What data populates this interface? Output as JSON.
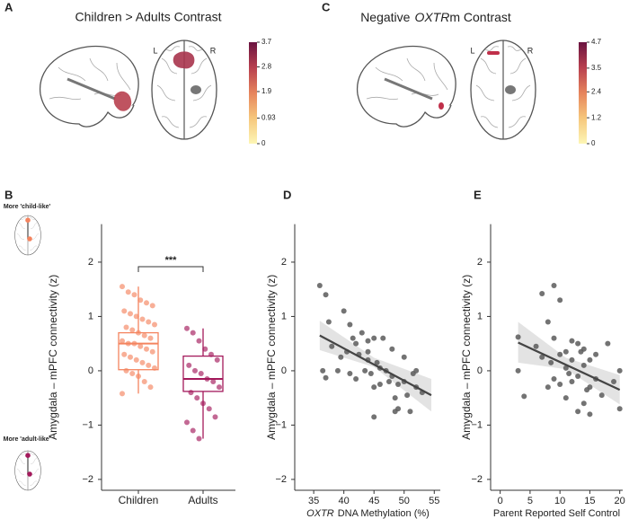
{
  "chart_data": [
    {
      "type": "brain",
      "panel": "A",
      "title": "Children > Adults Contrast",
      "left_label": "L",
      "right_label": "R",
      "colorbar": {
        "lim": [
          0,
          3.7
        ],
        "ticks": [
          0,
          0.93,
          1.9,
          2.8,
          3.7
        ],
        "colors": [
          "#fdf6b5",
          "#f6c77c",
          "#e6845c",
          "#b8404f",
          "#6a1340"
        ]
      }
    },
    {
      "type": "brain",
      "panel": "C",
      "title_prefix": "Negative",
      "title_italic": "OXTR",
      "title_suffix": "m Contrast",
      "left_label": "L",
      "right_label": "R",
      "colorbar": {
        "lim": [
          0,
          4.7
        ],
        "ticks": [
          0,
          1.2,
          2.4,
          3.5,
          4.7
        ],
        "colors": [
          "#fdf6b5",
          "#f6c77c",
          "#e6845c",
          "#b8404f",
          "#6a1340"
        ]
      }
    },
    {
      "type": "box",
      "panel": "B",
      "ylabel": "Amygdala – mPFC connectivity (z)",
      "ylim": [
        -2.2,
        2.7
      ],
      "yticks": [
        {
          "value": -2,
          "label": "−2"
        },
        {
          "value": -1,
          "label": "−1"
        },
        0,
        1,
        2
      ],
      "categories": [
        "Children",
        "Adults"
      ],
      "annotation": "***",
      "top_label": "More 'child-like'",
      "bottom_label": "More 'adult-like'",
      "series": [
        {
          "color": "#f4845f",
          "box": {
            "min": -0.42,
            "q1": 0.02,
            "median": 0.5,
            "q3": 0.7,
            "max": 1.55
          },
          "values": [
            1.55,
            1.45,
            1.4,
            1.3,
            1.25,
            1.2,
            1.1,
            1.05,
            1.0,
            0.95,
            0.9,
            0.85,
            0.8,
            0.75,
            0.7,
            0.65,
            0.6,
            0.55,
            0.5,
            0.5,
            0.45,
            0.4,
            0.35,
            0.3,
            0.25,
            0.2,
            0.15,
            0.1,
            0.05,
            0,
            -0.05,
            -0.1,
            -0.2,
            -0.3,
            -0.42
          ]
        },
        {
          "color": "#a3195b",
          "box": {
            "min": -1.25,
            "q1": -0.38,
            "median": -0.15,
            "q3": 0.27,
            "max": 0.78
          },
          "values": [
            0.78,
            0.7,
            0.55,
            0.4,
            0.3,
            0.2,
            0.1,
            0,
            -0.05,
            -0.15,
            -0.2,
            -0.3,
            -0.4,
            -0.5,
            -0.6,
            -0.7,
            -0.85,
            -0.95,
            -1.1,
            -1.25
          ]
        }
      ]
    },
    {
      "type": "scatter",
      "panel": "D",
      "ylabel": "Amygdala – mPFC connectivity (z)",
      "xlabel_italic": "OXTR",
      "xlabel": "DNA Methylation (%)",
      "xlim": [
        32,
        56
      ],
      "xticks": [
        35,
        40,
        45,
        50,
        55
      ],
      "ylim": [
        -2.2,
        2.7
      ],
      "yticks": [
        {
          "value": -2,
          "label": "−2"
        },
        {
          "value": -1,
          "label": "−1"
        },
        0,
        1,
        2
      ],
      "color": "#5a5a5a",
      "x": [
        36,
        36.5,
        37,
        37.5,
        37,
        38,
        39,
        40,
        40.5,
        41,
        41,
        42,
        42.5,
        42,
        43,
        43.5,
        44,
        44,
        44.5,
        45,
        45,
        45.5,
        46,
        46,
        46.5,
        47,
        47.5,
        48,
        48,
        48.5,
        49,
        49,
        50,
        50,
        50.5,
        51,
        51.5,
        52,
        52,
        53,
        45,
        48.5,
        44,
        39.5,
        41.5
      ],
      "y": [
        1.57,
        0,
        1.4,
        0.9,
        -0.13,
        0.45,
        0.0,
        1.1,
        0.35,
        0.85,
        -0.05,
        0.5,
        0.3,
        -0.15,
        0.7,
        0.0,
        0.55,
        0.2,
        -0.05,
        0.6,
        -0.3,
        0.15,
        0.05,
        -0.25,
        0.6,
        0.0,
        -0.2,
        0.4,
        -0.1,
        -0.5,
        -0.7,
        -0.25,
        0.25,
        -0.2,
        -0.45,
        -0.75,
        -0.05,
        0.0,
        -0.3,
        -0.4,
        -0.85,
        -0.75,
        0.35,
        0.25,
        0.6
      ],
      "fit": {
        "x": [
          36,
          54.5
        ],
        "y": [
          0.65,
          -0.45
        ]
      },
      "band": {
        "x": [
          36,
          45,
          54.5
        ],
        "lower": [
          0.38,
          0.07,
          -0.75
        ],
        "upper": [
          0.92,
          0.24,
          -0.15
        ]
      }
    },
    {
      "type": "scatter",
      "panel": "E",
      "ylabel": "Amygdala – mPFC connectivity (z)",
      "xlabel": "Parent Reported Self Control",
      "xlim": [
        -1.6,
        20.5
      ],
      "xticks": [
        0,
        5,
        10,
        15,
        20
      ],
      "ylim": [
        -2.2,
        2.7
      ],
      "yticks": [
        {
          "value": -2,
          "label": "−2"
        },
        {
          "value": -1,
          "label": "−1"
        },
        0,
        1,
        2
      ],
      "color": "#5a5a5a",
      "x": [
        3,
        3,
        4,
        6,
        7,
        7,
        8,
        8,
        9,
        9,
        9,
        10,
        10,
        10,
        11,
        11,
        11,
        12,
        12,
        12,
        13,
        13,
        13,
        14,
        14,
        14,
        15,
        15,
        15,
        16,
        16,
        17,
        18,
        19,
        20,
        20,
        13.5,
        11.5,
        8.5,
        14.5
      ],
      "y": [
        0.62,
        0,
        -0.47,
        0.45,
        1.42,
        0.25,
        0.9,
        -0.3,
        1.57,
        0.6,
        -0.15,
        1.3,
        0.3,
        -0.25,
        0.35,
        0.05,
        -0.5,
        0.55,
        0.2,
        -0.2,
        0.5,
        -0.1,
        -0.75,
        0.4,
        0.1,
        -0.6,
        0.2,
        -0.3,
        -0.8,
        0.3,
        -0.15,
        -0.45,
        0.5,
        -0.2,
        -0.7,
        0,
        0.35,
        -0.05,
        0.15,
        -0.35
      ],
      "fit": {
        "x": [
          3,
          20
        ],
        "y": [
          0.52,
          -0.35
        ]
      },
      "band": {
        "x": [
          3,
          11,
          20
        ],
        "lower": [
          0.15,
          0.03,
          -0.62
        ],
        "upper": [
          0.9,
          0.24,
          -0.08
        ]
      }
    }
  ]
}
